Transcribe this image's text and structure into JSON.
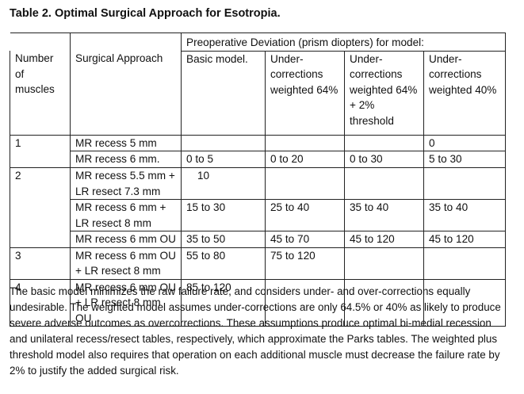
{
  "title": "Table 2. Optimal Surgical Approach for Esotropia.",
  "table": {
    "span_header": "Preoperative Deviation (prism diopters) for model:",
    "headers": {
      "muscles": "Number of muscles",
      "approach": "Surgical Approach",
      "basic": "Basic model.",
      "w64": "Under-corrections weighted 64%",
      "w64t": "Under-corrections weighted 64% + 2% threshold",
      "w40": "Under-corrections weighted 40%"
    },
    "groups": [
      {
        "muscles": "1",
        "rows": [
          {
            "approach": "MR recess 5 mm",
            "basic": "",
            "w64": "",
            "w64t": "",
            "w40": "0"
          },
          {
            "approach": "MR recess 6 mm.",
            "basic": "0 to 5",
            "w64": "0 to 20",
            "w64t": "0 to 30",
            "w40": "5 to 30"
          }
        ]
      },
      {
        "muscles": "2",
        "rows": [
          {
            "approach": "MR recess 5.5 mm + LR resect 7.3 mm",
            "basic": "10",
            "w64": "",
            "w64t": "",
            "w40": ""
          },
          {
            "approach": "MR recess 6 mm + LR resect 8 mm",
            "basic": "15 to 30",
            "w64": "25 to 40",
            "w64t": "35 to 40",
            "w40": "35 to 40"
          },
          {
            "approach": "MR recess 6 mm OU",
            "basic": "35 to 50",
            "w64": "45 to 70",
            "w64t": "45 to 120",
            "w40": "45 to 120"
          }
        ]
      },
      {
        "muscles": "3",
        "rows": [
          {
            "approach": "MR recess 6 mm OU + LR resect 8 mm",
            "basic": "55 to 80",
            "w64": "75 to 120",
            "w64t": "",
            "w40": ""
          }
        ]
      },
      {
        "muscles": "4",
        "rows": [
          {
            "approach": "MR recess 6 mm OU + LR resect 8 mm OU",
            "basic": "85 to 120",
            "w64": "",
            "w64t": "",
            "w40": ""
          }
        ]
      }
    ]
  },
  "notes": "The basic model minimizes the raw failure rate, and considers under- and over-corrections equally undesirable. The weighted model assumes under-corrections are only 64.5% or 40% as likely to produce severe adverse outcomes as overcorrections. These assumptions produce optimal bi-medial recession and unilateral recess/resect tables, respectively, which approximate the Parks tables. The weighted plus threshold model also requires that operation on each additional muscle must decrease the failure rate by 2% to justify the added surgical risk."
}
